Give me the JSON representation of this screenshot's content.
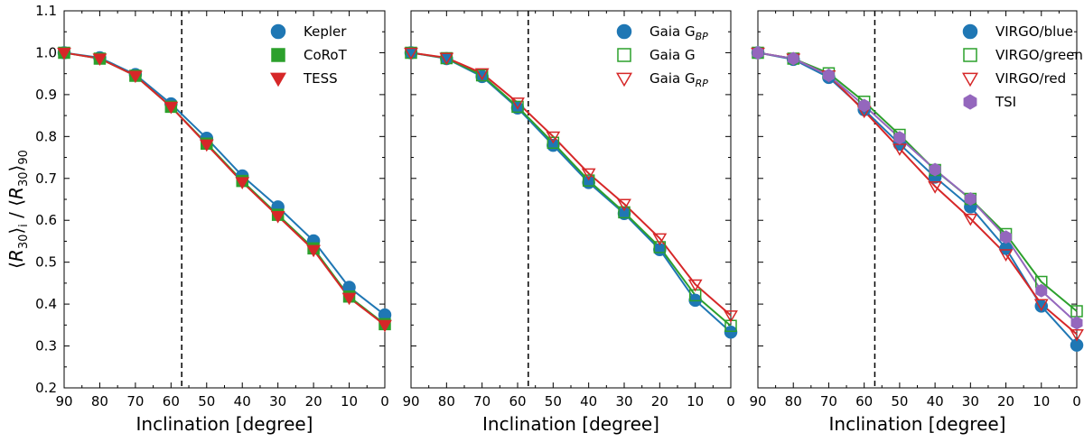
{
  "figure": {
    "xlabel": "Inclination [degree]",
    "ylabel_parts": {
      "r": "R",
      "sub": "30",
      "i": "i",
      "n90": "90"
    }
  },
  "chart_data": [
    {
      "type": "line",
      "xlabel": "Inclination [degree]",
      "ylabel": "⟨R30⟩i / ⟨R30⟩90",
      "x": [
        90,
        80,
        70,
        60,
        50,
        40,
        30,
        20,
        10,
        0
      ],
      "xlim": [
        90,
        0
      ],
      "ylim": [
        0.2,
        1.1
      ],
      "xticks": [
        "90",
        "80",
        "70",
        "60",
        "50",
        "40",
        "30",
        "20",
        "10",
        "0"
      ],
      "yticks": [
        "0.2",
        "0.3",
        "0.4",
        "0.5",
        "0.6",
        "0.7",
        "0.8",
        "0.9",
        "1.0",
        "1.1"
      ],
      "vline": 57,
      "legend": "top-right",
      "series": [
        {
          "name": "Kepler",
          "color": "#1f77b4",
          "marker": "circle",
          "filled": true,
          "values": [
            1.0,
            0.988,
            0.948,
            0.878,
            0.796,
            0.706,
            0.632,
            0.551,
            0.44,
            0.374
          ]
        },
        {
          "name": "CoRoT",
          "color": "#2ca02c",
          "marker": "square",
          "filled": true,
          "values": [
            1.0,
            0.986,
            0.945,
            0.871,
            0.783,
            0.694,
            0.613,
            0.533,
            0.418,
            0.352
          ]
        },
        {
          "name": "TESS",
          "color": "#d62728",
          "marker": "triangle-down",
          "filled": true,
          "values": [
            1.0,
            0.986,
            0.945,
            0.871,
            0.781,
            0.691,
            0.61,
            0.529,
            0.415,
            0.35
          ]
        }
      ]
    },
    {
      "type": "line",
      "xlabel": "Inclination [degree]",
      "x": [
        90,
        80,
        70,
        60,
        50,
        40,
        30,
        20,
        10,
        0
      ],
      "xlim": [
        90,
        0
      ],
      "ylim": [
        0.2,
        1.1
      ],
      "xticks": [
        "90",
        "80",
        "70",
        "60",
        "50",
        "40",
        "30",
        "20",
        "10",
        "0"
      ],
      "vline": 57,
      "legend": "top-right",
      "series": [
        {
          "name": "Gaia G",
          "sub": "BP",
          "color": "#1f77b4",
          "marker": "circle",
          "filled": true,
          "values": [
            1.0,
            0.986,
            0.943,
            0.868,
            0.779,
            0.69,
            0.616,
            0.53,
            0.409,
            0.333
          ]
        },
        {
          "name": "Gaia G",
          "sub": "",
          "color": "#2ca02c",
          "marker": "square",
          "filled": false,
          "values": [
            1.0,
            0.987,
            0.946,
            0.871,
            0.785,
            0.695,
            0.619,
            0.536,
            0.421,
            0.348
          ]
        },
        {
          "name": "Gaia G",
          "sub": "RP",
          "color": "#d62728",
          "marker": "triangle-down",
          "filled": false,
          "values": [
            1.0,
            0.988,
            0.951,
            0.881,
            0.8,
            0.712,
            0.639,
            0.557,
            0.447,
            0.373
          ]
        }
      ]
    },
    {
      "type": "line",
      "xlabel": "Inclination [degree]",
      "x": [
        90,
        80,
        70,
        60,
        50,
        40,
        30,
        20,
        10,
        0
      ],
      "xlim": [
        90,
        0
      ],
      "ylim": [
        0.2,
        1.1
      ],
      "xticks": [
        "90",
        "80",
        "70",
        "60",
        "50",
        "40",
        "30",
        "20",
        "10",
        "0"
      ],
      "vline": 57,
      "legend": "top-right",
      "series": [
        {
          "name": "VIRGO/blue",
          "color": "#1f77b4",
          "marker": "circle",
          "filled": true,
          "values": [
            1.0,
            0.984,
            0.941,
            0.864,
            0.782,
            0.703,
            0.632,
            0.533,
            0.395,
            0.302
          ]
        },
        {
          "name": "VIRGO/green",
          "color": "#2ca02c",
          "marker": "square",
          "filled": false,
          "values": [
            1.0,
            0.986,
            0.951,
            0.883,
            0.804,
            0.72,
            0.651,
            0.567,
            0.453,
            0.383
          ]
        },
        {
          "name": "VIRGO/red",
          "color": "#d62728",
          "marker": "triangle-down",
          "filled": false,
          "values": [
            1.0,
            0.986,
            0.946,
            0.861,
            0.771,
            0.681,
            0.604,
            0.519,
            0.4,
            0.328
          ]
        },
        {
          "name": "TSI",
          "color": "#9467bd",
          "marker": "hexagon",
          "filled": true,
          "values": [
            1.0,
            0.986,
            0.946,
            0.874,
            0.797,
            0.721,
            0.651,
            0.56,
            0.432,
            0.355
          ]
        }
      ]
    }
  ]
}
